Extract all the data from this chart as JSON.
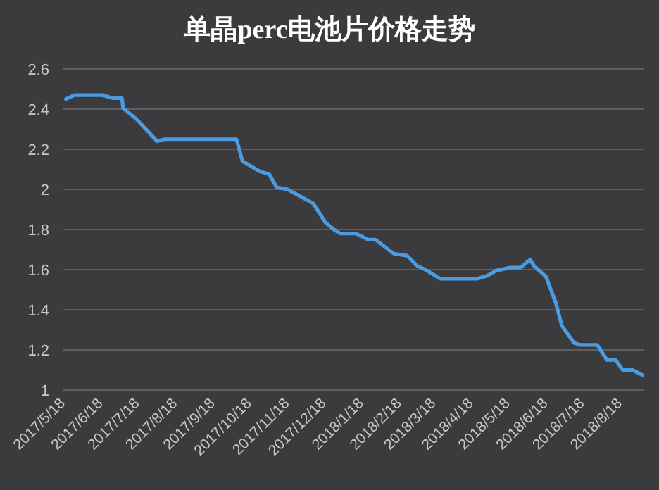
{
  "chart_data": {
    "type": "line",
    "title": "单晶perc电池片价格走势",
    "x": [
      "2017-05-18",
      "2017-05-25",
      "2017-06-17",
      "2017-06-25",
      "2017-07-03",
      "2017-07-04",
      "2017-07-15",
      "2017-08-01",
      "2017-08-07",
      "2017-10-05",
      "2017-10-10",
      "2017-10-24",
      "2017-11-01",
      "2017-11-07",
      "2017-11-16",
      "2017-12-07",
      "2017-12-17",
      "2017-12-24",
      "2017-12-29",
      "2018-01-11",
      "2018-01-21",
      "2018-01-27",
      "2018-02-11",
      "2018-02-22",
      "2018-03-02",
      "2018-03-09",
      "2018-03-21",
      "2018-04-21",
      "2018-04-29",
      "2018-05-06",
      "2018-05-18",
      "2018-05-26",
      "2018-06-03",
      "2018-06-06",
      "2018-06-16",
      "2018-06-24",
      "2018-06-29",
      "2018-07-09",
      "2018-07-14",
      "2018-07-28",
      "2018-08-05",
      "2018-08-12",
      "2018-08-18",
      "2018-08-26",
      "2018-09-03"
    ],
    "series": [
      {
        "color": "#4a9be0",
        "values": [
          2.45,
          2.47,
          2.47,
          2.455,
          2.455,
          2.405,
          2.35,
          2.24,
          2.25,
          2.25,
          2.14,
          2.09,
          2.075,
          2.01,
          2.0,
          1.93,
          1.835,
          1.8,
          1.78,
          1.78,
          1.75,
          1.75,
          1.68,
          1.67,
          1.62,
          1.6,
          1.555,
          1.555,
          1.57,
          1.595,
          1.61,
          1.61,
          1.65,
          1.62,
          1.565,
          1.435,
          1.32,
          1.235,
          1.225,
          1.225,
          1.15,
          1.15,
          1.1,
          1.1,
          1.075
        ]
      }
    ],
    "xlim": [
      "2017-05-16",
      "2018-09-04"
    ],
    "xticks": [
      {
        "value": "2017-05-18",
        "label": "2017/5/18"
      },
      {
        "value": "2017-06-18",
        "label": "2017/6/18"
      },
      {
        "value": "2017-07-18",
        "label": "2017/7/18"
      },
      {
        "value": "2017-08-18",
        "label": "2017/8/18"
      },
      {
        "value": "2017-09-18",
        "label": "2017/9/18"
      },
      {
        "value": "2017-10-18",
        "label": "2017/10/18"
      },
      {
        "value": "2017-11-18",
        "label": "2017/11/18"
      },
      {
        "value": "2017-12-18",
        "label": "2017/12/18"
      },
      {
        "value": "2018-01-18",
        "label": "2018/1/18"
      },
      {
        "value": "2018-02-18",
        "label": "2018/2/18"
      },
      {
        "value": "2018-03-18",
        "label": "2018/3/18"
      },
      {
        "value": "2018-04-18",
        "label": "2018/4/18"
      },
      {
        "value": "2018-05-18",
        "label": "2018/5/18"
      },
      {
        "value": "2018-06-18",
        "label": "2018/6/18"
      },
      {
        "value": "2018-07-18",
        "label": "2018/7/18"
      },
      {
        "value": "2018-08-18",
        "label": "2018/8/18"
      }
    ],
    "ylim": [
      1,
      2.6
    ],
    "yticks": [
      1,
      1.2,
      1.4,
      1.6,
      1.8,
      2,
      2.2,
      2.4,
      2.6
    ],
    "grid": "y",
    "marker": "none",
    "line_style": "solid"
  }
}
